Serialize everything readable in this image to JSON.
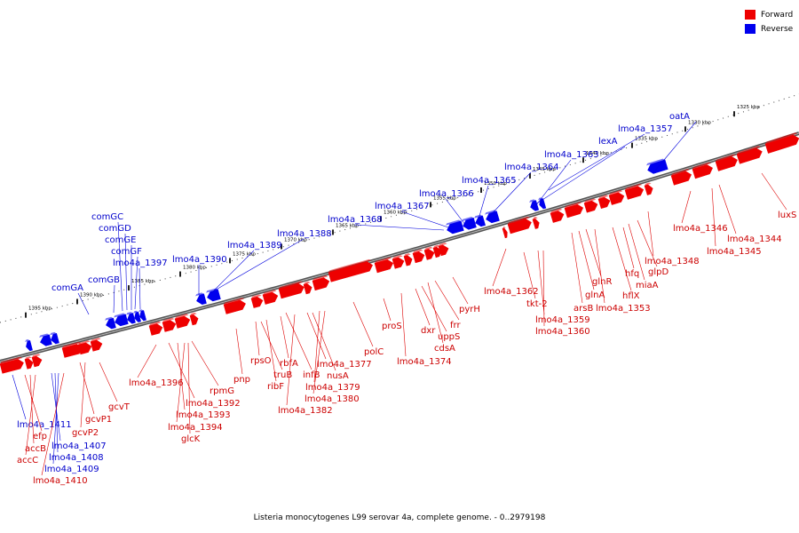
{
  "legend": [
    {
      "label": "Forward",
      "color": "#ee0000"
    },
    {
      "label": "Reverse",
      "color": "#0000ee"
    }
  ],
  "footer": "Listeria monocytogenes L99 serovar 4a, complete genome. - 0..2979198",
  "colors": {
    "forward": "#ee0000",
    "reverse": "#0000ee",
    "backbone": "#777777"
  },
  "ruler": [
    "1325 kbp",
    "1330 kbp",
    "1335 kbp",
    "1340 kbp",
    "1345 kbp",
    "1350 kbp",
    "1355 kbp",
    "1360 kbp",
    "1365 kbp",
    "1370 kbp",
    "1375 kbp",
    "1380 kbp",
    "1385 kbp",
    "1390 kbp",
    "1395 kbp"
  ],
  "genes_above": [
    {
      "name": "comGA",
      "strand": "reverse"
    },
    {
      "name": "comGB",
      "strand": "reverse"
    },
    {
      "name": "comGC",
      "strand": "reverse"
    },
    {
      "name": "comGD",
      "strand": "reverse"
    },
    {
      "name": "comGE",
      "strand": "reverse"
    },
    {
      "name": "comGF",
      "strand": "reverse"
    },
    {
      "name": "lmo4a_1397",
      "strand": "reverse"
    },
    {
      "name": "lmo4a_1390",
      "strand": "reverse"
    },
    {
      "name": "lmo4a_1389",
      "strand": "reverse"
    },
    {
      "name": "lmo4a_1388",
      "strand": "reverse"
    },
    {
      "name": "lmo4a_1368",
      "strand": "reverse"
    },
    {
      "name": "lmo4a_1367",
      "strand": "reverse"
    },
    {
      "name": "lmo4a_1366",
      "strand": "reverse"
    },
    {
      "name": "lmo4a_1365",
      "strand": "reverse"
    },
    {
      "name": "lmo4a_1364",
      "strand": "reverse"
    },
    {
      "name": "lmo4a_1363",
      "strand": "reverse"
    },
    {
      "name": "lexA",
      "strand": "reverse"
    },
    {
      "name": "lmo4a_1357",
      "strand": "reverse"
    },
    {
      "name": "oatA",
      "strand": "reverse"
    }
  ],
  "genes_below": [
    {
      "name": "lmo4a_1411",
      "strand": "reverse"
    },
    {
      "name": "efp",
      "strand": "forward"
    },
    {
      "name": "accB",
      "strand": "forward"
    },
    {
      "name": "accC",
      "strand": "forward"
    },
    {
      "name": "lmo4a_1407",
      "strand": "reverse"
    },
    {
      "name": "lmo4a_1408",
      "strand": "reverse"
    },
    {
      "name": "lmo4a_1409",
      "strand": "reverse"
    },
    {
      "name": "lmo4a_1410",
      "strand": "forward"
    },
    {
      "name": "gcvP1",
      "strand": "forward"
    },
    {
      "name": "gcvP2",
      "strand": "forward"
    },
    {
      "name": "gcvT",
      "strand": "forward"
    },
    {
      "name": "lmo4a_1396",
      "strand": "forward"
    },
    {
      "name": "lmo4a_1392",
      "strand": "forward"
    },
    {
      "name": "lmo4a_1393",
      "strand": "forward"
    },
    {
      "name": "lmo4a_1394",
      "strand": "forward"
    },
    {
      "name": "glcK",
      "strand": "forward"
    },
    {
      "name": "rpmG",
      "strand": "forward"
    },
    {
      "name": "pnp",
      "strand": "forward"
    },
    {
      "name": "rpsO",
      "strand": "forward"
    },
    {
      "name": "truB",
      "strand": "forward"
    },
    {
      "name": "ribF",
      "strand": "forward"
    },
    {
      "name": "rbfA",
      "strand": "forward"
    },
    {
      "name": "infB",
      "strand": "forward"
    },
    {
      "name": "lmo4a_1382",
      "strand": "forward"
    },
    {
      "name": "lmo4a_1377",
      "strand": "forward"
    },
    {
      "name": "nusA",
      "strand": "forward"
    },
    {
      "name": "lmo4a_1379",
      "strand": "forward"
    },
    {
      "name": "lmo4a_1380",
      "strand": "forward"
    },
    {
      "name": "polC",
      "strand": "forward"
    },
    {
      "name": "proS",
      "strand": "forward"
    },
    {
      "name": "lmo4a_1374",
      "strand": "forward"
    },
    {
      "name": "dxr",
      "strand": "forward"
    },
    {
      "name": "uppS",
      "strand": "forward"
    },
    {
      "name": "cdsA",
      "strand": "forward"
    },
    {
      "name": "frr",
      "strand": "forward"
    },
    {
      "name": "pyrH",
      "strand": "forward"
    },
    {
      "name": "lmo4a_1362",
      "strand": "forward"
    },
    {
      "name": "tkt-2",
      "strand": "forward"
    },
    {
      "name": "lmo4a_1359",
      "strand": "forward"
    },
    {
      "name": "lmo4a_1360",
      "strand": "forward"
    },
    {
      "name": "arsB",
      "strand": "forward"
    },
    {
      "name": "glnA",
      "strand": "forward"
    },
    {
      "name": "glnR",
      "strand": "forward"
    },
    {
      "name": "lmo4a_1353",
      "strand": "forward"
    },
    {
      "name": "hflX",
      "strand": "forward"
    },
    {
      "name": "hfq",
      "strand": "forward"
    },
    {
      "name": "miaA",
      "strand": "forward"
    },
    {
      "name": "glpD",
      "strand": "forward"
    },
    {
      "name": "lmo4a_1348",
      "strand": "forward"
    },
    {
      "name": "lmo4a_1346",
      "strand": "forward"
    },
    {
      "name": "lmo4a_1345",
      "strand": "forward"
    },
    {
      "name": "lmo4a_1344",
      "strand": "forward"
    },
    {
      "name": "luxS",
      "strand": "forward"
    }
  ]
}
